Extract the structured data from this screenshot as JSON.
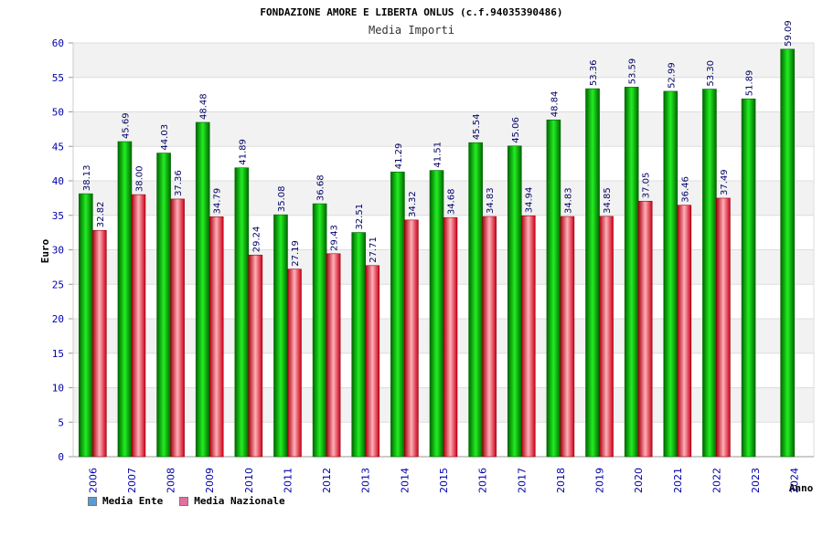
{
  "chart_data": {
    "type": "bar",
    "title": "FONDAZIONE AMORE E LIBERTA ONLUS (c.f.94035390486)",
    "subtitle": "Media Importi",
    "ylabel": "Euro",
    "xlabel": "Anno",
    "ylim": [
      0,
      60
    ],
    "yticks": [
      0,
      5,
      10,
      15,
      20,
      25,
      30,
      35,
      40,
      45,
      50,
      55,
      60
    ],
    "categories": [
      "2006",
      "2007",
      "2008",
      "2009",
      "2010",
      "2011",
      "2012",
      "2013",
      "2014",
      "2015",
      "2016",
      "2017",
      "2018",
      "2019",
      "2020",
      "2021",
      "2022",
      "2023",
      "2024"
    ],
    "series": [
      {
        "name": "Media Ente",
        "color": "#00aa00",
        "values": [
          38.13,
          45.69,
          44.03,
          48.48,
          41.89,
          35.08,
          36.68,
          32.51,
          41.29,
          41.51,
          45.54,
          45.06,
          48.84,
          53.36,
          53.59,
          52.99,
          53.3,
          51.89,
          59.09
        ],
        "labels": [
          "38.13",
          "45.69",
          "44.03",
          "48.48",
          "41.89",
          "35.08",
          "36.68",
          "32.51",
          "41.29",
          "41.51",
          "45.54",
          "45.06",
          "48.84",
          "53.36",
          "53.59",
          "52.99",
          "53.30",
          "51.89",
          "59.09"
        ]
      },
      {
        "name": "Media Nazionale",
        "color": "#e8203a",
        "values": [
          32.82,
          38.0,
          37.36,
          34.79,
          29.24,
          27.19,
          29.43,
          27.71,
          34.32,
          34.68,
          34.83,
          34.94,
          34.83,
          34.85,
          37.05,
          36.46,
          37.49,
          null,
          null
        ],
        "labels": [
          "32.82",
          "38.00",
          "37.36",
          "34.79",
          "29.24",
          "27.19",
          "29.43",
          "27.71",
          "34.32",
          "34.68",
          "34.83",
          "34.94",
          "34.83",
          "34.85",
          "37.05",
          "36.46",
          "37.49",
          "",
          ""
        ]
      }
    ],
    "legend_position": "bottom-left",
    "grid": true
  },
  "legend": {
    "items": [
      {
        "label": "Media Ente",
        "color": "#5b9bd5"
      },
      {
        "label": "Media Nazionale",
        "color": "#e070a0"
      }
    ]
  }
}
